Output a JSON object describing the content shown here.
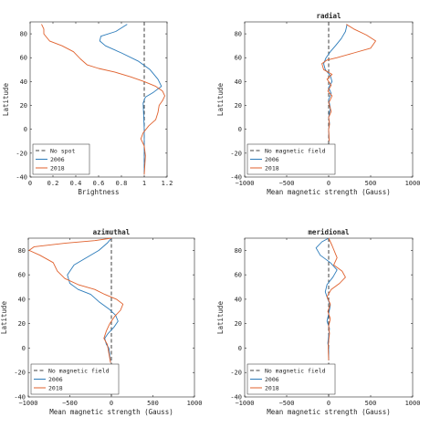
{
  "colors": {
    "ref": "#404040",
    "s2006": "#2b7bba",
    "s2018": "#e0602c",
    "axis": "#262626"
  },
  "chart_data": [
    {
      "type": "line",
      "title": "",
      "xlabel": "Brightness",
      "ylabel": "Latitude",
      "xlim": [
        0,
        1.2
      ],
      "ylim": [
        -40,
        90
      ],
      "xticks": [
        0,
        0.2,
        0.4,
        0.6,
        0.8,
        1,
        1.2
      ],
      "xtick_labels": [
        "0",
        "0.2",
        "0.4",
        "0.6",
        "0.8",
        "1",
        "1.2"
      ],
      "yticks": [
        -40,
        -20,
        0,
        20,
        40,
        60,
        80
      ],
      "legend_position": "bottom-left",
      "reference": {
        "name": "No spot",
        "x": 1
      },
      "series": [
        {
          "name": "2006",
          "points": [
            [
              0.85,
              88
            ],
            [
              0.75,
              82
            ],
            [
              0.62,
              78
            ],
            [
              0.61,
              74
            ],
            [
              0.66,
              70
            ],
            [
              0.8,
              64
            ],
            [
              0.95,
              57
            ],
            [
              1.05,
              50
            ],
            [
              1.12,
              42
            ],
            [
              1.15,
              36
            ],
            [
              1.08,
              31
            ],
            [
              1.01,
              27
            ],
            [
              0.99,
              22
            ],
            [
              1.0,
              0
            ],
            [
              1.0,
              -38
            ]
          ]
        },
        {
          "name": "2018",
          "points": [
            [
              0.1,
              88
            ],
            [
              0.12,
              84
            ],
            [
              0.12,
              80
            ],
            [
              0.17,
              74
            ],
            [
              0.28,
              70
            ],
            [
              0.38,
              65
            ],
            [
              0.44,
              59
            ],
            [
              0.5,
              54
            ],
            [
              0.6,
              51
            ],
            [
              0.74,
              48
            ],
            [
              0.88,
              44
            ],
            [
              1.0,
              40
            ],
            [
              1.1,
              36
            ],
            [
              1.16,
              32
            ],
            [
              1.18,
              28
            ],
            [
              1.16,
              24
            ],
            [
              1.13,
              20
            ],
            [
              1.12,
              14
            ],
            [
              1.1,
              8
            ],
            [
              1.04,
              3
            ],
            [
              0.99,
              -3
            ],
            [
              0.97,
              -8
            ],
            [
              1.0,
              -14
            ],
            [
              1.01,
              -22
            ],
            [
              1.0,
              -38
            ]
          ]
        }
      ]
    },
    {
      "type": "line",
      "title": "radial",
      "xlabel": "Mean magnetic strength (Gauss)",
      "ylabel": "Latitude",
      "xlim": [
        -1000,
        1000
      ],
      "ylim": [
        -40,
        90
      ],
      "xticks": [
        -1000,
        -500,
        0,
        500,
        1000
      ],
      "xtick_labels": [
        "−1000",
        "−500",
        "0",
        "500",
        "1000"
      ],
      "yticks": [
        -40,
        -20,
        0,
        20,
        40,
        60,
        80
      ],
      "legend_position": "bottom-left",
      "reference": {
        "name": "No magnetic field",
        "x": 0
      },
      "series": [
        {
          "name": "2006",
          "points": [
            [
              220,
              88
            ],
            [
              200,
              82
            ],
            [
              150,
              76
            ],
            [
              80,
              70
            ],
            [
              20,
              65
            ],
            [
              -30,
              60
            ],
            [
              -60,
              55
            ],
            [
              -40,
              50
            ],
            [
              20,
              45
            ],
            [
              40,
              40
            ],
            [
              0,
              35
            ],
            [
              30,
              30
            ],
            [
              0,
              25
            ],
            [
              20,
              18
            ],
            [
              0,
              10
            ],
            [
              10,
              5
            ],
            [
              0,
              0
            ],
            [
              5,
              -10
            ]
          ]
        },
        {
          "name": "2018",
          "points": [
            [
              210,
              88
            ],
            [
              300,
              84
            ],
            [
              450,
              79
            ],
            [
              560,
              74
            ],
            [
              500,
              68
            ],
            [
              300,
              64
            ],
            [
              100,
              60
            ],
            [
              -20,
              58
            ],
            [
              -80,
              55
            ],
            [
              -60,
              50
            ],
            [
              40,
              46
            ],
            [
              -20,
              42
            ],
            [
              30,
              37
            ],
            [
              -10,
              32
            ],
            [
              40,
              28
            ],
            [
              0,
              22
            ],
            [
              30,
              15
            ],
            [
              0,
              10
            ],
            [
              10,
              4
            ],
            [
              0,
              0
            ],
            [
              5,
              -10
            ]
          ]
        }
      ]
    },
    {
      "type": "line",
      "title": "azimuthal",
      "xlabel": "Mean magnetic strength (Gauss)",
      "ylabel": "Latitude",
      "xlim": [
        -1000,
        1000
      ],
      "ylim": [
        -40,
        90
      ],
      "xticks": [
        -1000,
        -500,
        0,
        500,
        1000
      ],
      "xtick_labels": [
        "−1000",
        "−500",
        "0",
        "500",
        "1000"
      ],
      "yticks": [
        -40,
        -20,
        0,
        20,
        40,
        60,
        80
      ],
      "legend_position": "bottom-left",
      "reference": {
        "name": "No magnetic field",
        "x": 0
      },
      "series": [
        {
          "name": "2006",
          "points": [
            [
              0,
              90
            ],
            [
              -50,
              86
            ],
            [
              -150,
              80
            ],
            [
              -300,
              74
            ],
            [
              -450,
              68
            ],
            [
              -530,
              60
            ],
            [
              -500,
              53
            ],
            [
              -400,
              48
            ],
            [
              -250,
              44
            ],
            [
              -150,
              38
            ],
            [
              -30,
              32
            ],
            [
              50,
              27
            ],
            [
              80,
              22
            ],
            [
              30,
              17
            ],
            [
              -40,
              12
            ],
            [
              -80,
              8
            ],
            [
              -60,
              3
            ],
            [
              -30,
              0
            ],
            [
              -10,
              -12
            ]
          ]
        },
        {
          "name": "2018",
          "points": [
            [
              0,
              90
            ],
            [
              -200,
              88
            ],
            [
              -550,
              86
            ],
            [
              -930,
              83
            ],
            [
              -990,
              80
            ],
            [
              -860,
              76
            ],
            [
              -700,
              70
            ],
            [
              -650,
              63
            ],
            [
              -560,
              57
            ],
            [
              -400,
              52
            ],
            [
              -200,
              48
            ],
            [
              -80,
              44
            ],
            [
              60,
              40
            ],
            [
              140,
              36
            ],
            [
              110,
              31
            ],
            [
              40,
              26
            ],
            [
              -20,
              20
            ],
            [
              -60,
              14
            ],
            [
              -90,
              8
            ],
            [
              -50,
              3
            ],
            [
              -10,
              -12
            ]
          ]
        }
      ]
    },
    {
      "type": "line",
      "title": "meridional",
      "xlabel": "Mean magnetic strength (Gauss)",
      "ylabel": "Latitude",
      "xlim": [
        -1000,
        1000
      ],
      "ylim": [
        -40,
        90
      ],
      "xticks": [
        -1000,
        -500,
        0,
        500,
        1000
      ],
      "xtick_labels": [
        "−1000",
        "−500",
        "0",
        "500",
        "1000"
      ],
      "yticks": [
        -40,
        -20,
        0,
        20,
        40,
        60,
        80
      ],
      "legend_position": "bottom-left",
      "reference": {
        "name": "No magnetic field",
        "x": 0
      },
      "series": [
        {
          "name": "2006",
          "points": [
            [
              0,
              90
            ],
            [
              -80,
              87
            ],
            [
              -150,
              82
            ],
            [
              -100,
              76
            ],
            [
              20,
              70
            ],
            [
              100,
              64
            ],
            [
              50,
              58
            ],
            [
              -20,
              52
            ],
            [
              -40,
              46
            ],
            [
              -10,
              40
            ],
            [
              20,
              35
            ],
            [
              0,
              28
            ],
            [
              -20,
              22
            ],
            [
              10,
              16
            ],
            [
              0,
              10
            ],
            [
              -10,
              4
            ],
            [
              0,
              0
            ],
            [
              0,
              -10
            ]
          ]
        },
        {
          "name": "2018",
          "points": [
            [
              0,
              90
            ],
            [
              40,
              84
            ],
            [
              100,
              74
            ],
            [
              60,
              68
            ],
            [
              160,
              63
            ],
            [
              200,
              58
            ],
            [
              130,
              53
            ],
            [
              30,
              48
            ],
            [
              -20,
              42
            ],
            [
              20,
              36
            ],
            [
              -10,
              30
            ],
            [
              20,
              24
            ],
            [
              0,
              18
            ],
            [
              10,
              12
            ],
            [
              0,
              6
            ],
            [
              -5,
              0
            ],
            [
              0,
              -10
            ]
          ]
        }
      ]
    }
  ]
}
